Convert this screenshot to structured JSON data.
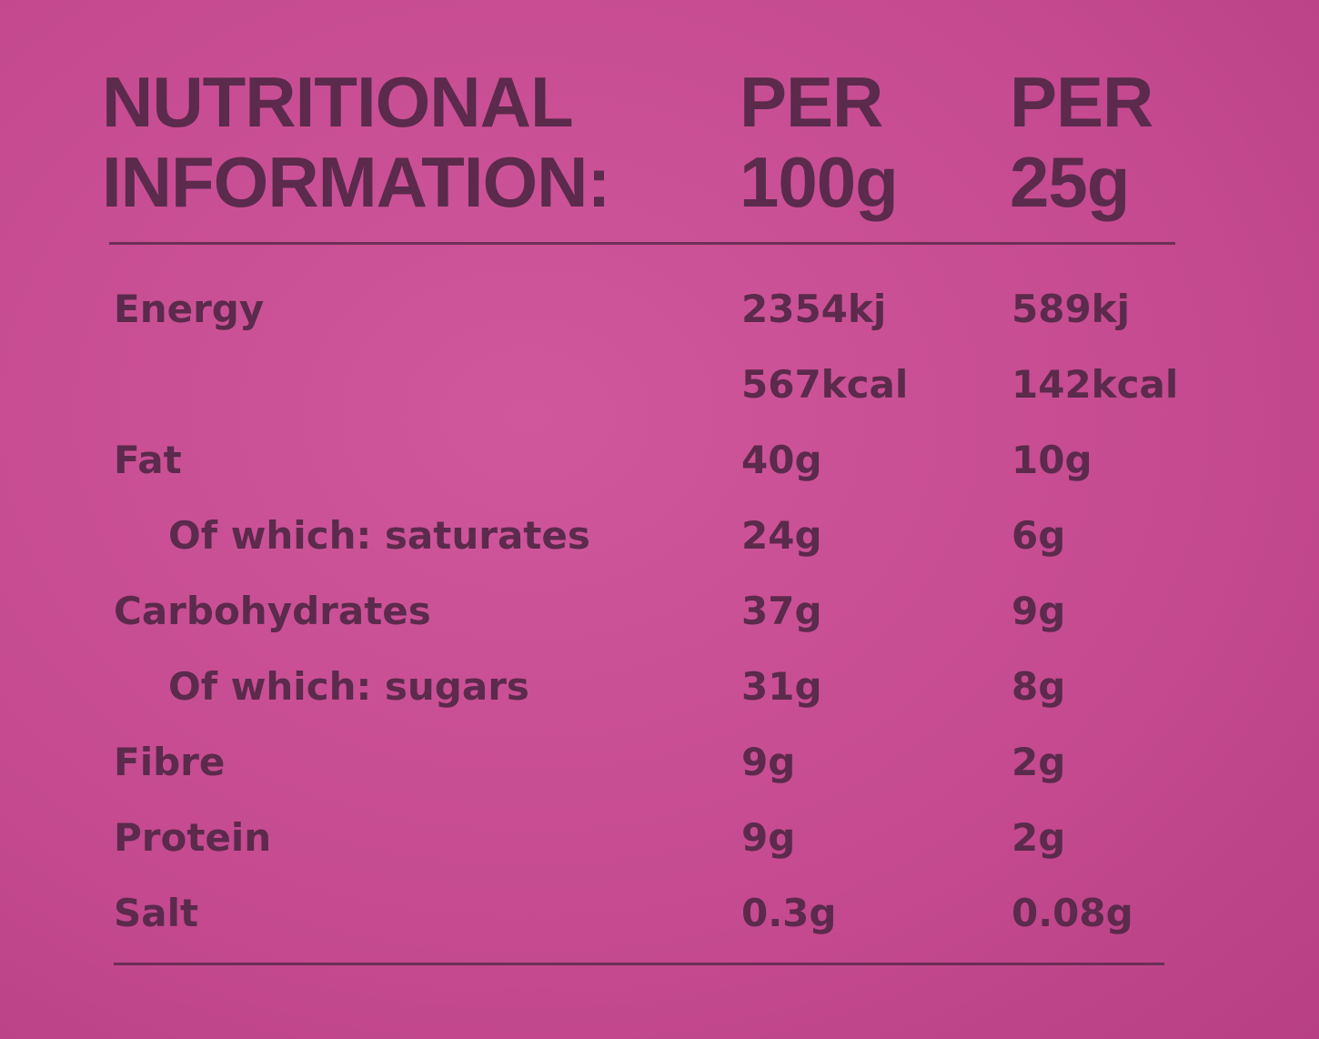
{
  "header": {
    "title": [
      "NUTRITIONAL",
      "INFORMATION:"
    ],
    "columns": [
      [
        "PER",
        "100g"
      ],
      [
        "PER",
        "25g"
      ]
    ]
  },
  "table": {
    "rows": [
      {
        "label": "Energy",
        "cells": [
          [
            "2354kj",
            "567kcal"
          ],
          [
            "589kj",
            "142kcal"
          ]
        ]
      },
      {
        "label": "Fat",
        "cells": [
          [
            "40g"
          ],
          [
            "10g"
          ]
        ]
      },
      {
        "label": "Of which: saturates",
        "sub": true,
        "cells": [
          [
            "24g"
          ],
          [
            "6g"
          ]
        ]
      },
      {
        "label": "Carbohydrates",
        "cells": [
          [
            "37g"
          ],
          [
            "9g"
          ]
        ]
      },
      {
        "label": "Of which: sugars",
        "sub": true,
        "cells": [
          [
            "31g"
          ],
          [
            "8g"
          ]
        ]
      },
      {
        "label": "Fibre",
        "cells": [
          [
            "9g"
          ],
          [
            "2g"
          ]
        ]
      },
      {
        "label": "Protein",
        "cells": [
          [
            "9g"
          ],
          [
            "2g"
          ]
        ]
      },
      {
        "label": "Salt",
        "cells": [
          [
            "0.3g"
          ],
          [
            "0.08g"
          ]
        ]
      }
    ]
  }
}
